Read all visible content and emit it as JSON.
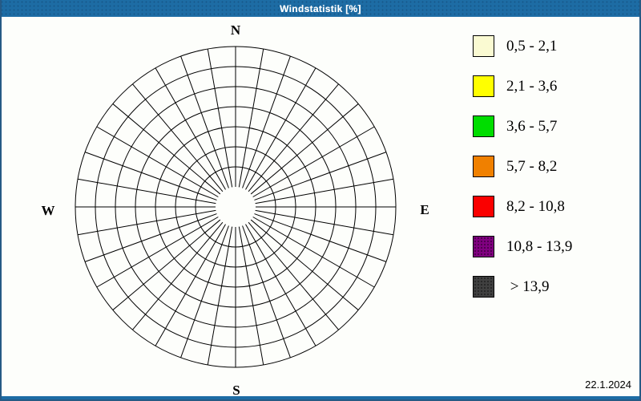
{
  "window": {
    "title": "Windstatistik [%]",
    "date": "22.1.2024",
    "titlebar_color": "#1d6ca4",
    "border_color": "#265a85",
    "background_color": "#fdfefb"
  },
  "compass": {
    "north": "N",
    "east": "E",
    "south": "S",
    "west": "W"
  },
  "legend": {
    "items": [
      {
        "label": "0,5 - 2,1",
        "color": "#FAFAD2",
        "stippled": false
      },
      {
        "label": "2,1 - 3,6",
        "color": "#FFFF00",
        "stippled": false
      },
      {
        "label": "3,6 - 5,7",
        "color": "#00DD00",
        "stippled": false
      },
      {
        "label": "5,7 - 8,2",
        "color": "#F08000",
        "stippled": false
      },
      {
        "label": "8,2 - 10,8",
        "color": "#FA0000",
        "stippled": false
      },
      {
        "label": "10,8 - 13,9",
        "color": "#800080",
        "stippled": true
      },
      {
        "label": " > 13,9",
        "color": "#404040",
        "stippled": true
      }
    ]
  },
  "chart_data": {
    "type": "wind-rose",
    "title": "Windstatistik [%]",
    "units": "%",
    "direction_labels": [
      "N",
      "E",
      "S",
      "W"
    ],
    "sectors": 36,
    "sector_angle_deg": 10,
    "grid": {
      "inner_hole_radius": 25,
      "ring_radii": [
        50,
        75,
        100,
        125,
        150,
        175,
        200
      ],
      "outer_radius": 200,
      "line_color": "#000000",
      "grid_visible": true
    },
    "plotted_values": [],
    "legend_bins": [
      {
        "range": "0,5 - 2,1",
        "color": "#FAFAD2"
      },
      {
        "range": "2,1 - 3,6",
        "color": "#FFFF00"
      },
      {
        "range": "3,6 - 5,7",
        "color": "#00DD00"
      },
      {
        "range": "5,7 - 8,2",
        "color": "#F08000"
      },
      {
        "range": "8,2 - 10,8",
        "color": "#FA0000"
      },
      {
        "range": "10,8 - 13,9",
        "color": "#800080"
      },
      {
        "range": "> 13,9",
        "color": "#404040"
      }
    ],
    "legend_position": "right"
  }
}
